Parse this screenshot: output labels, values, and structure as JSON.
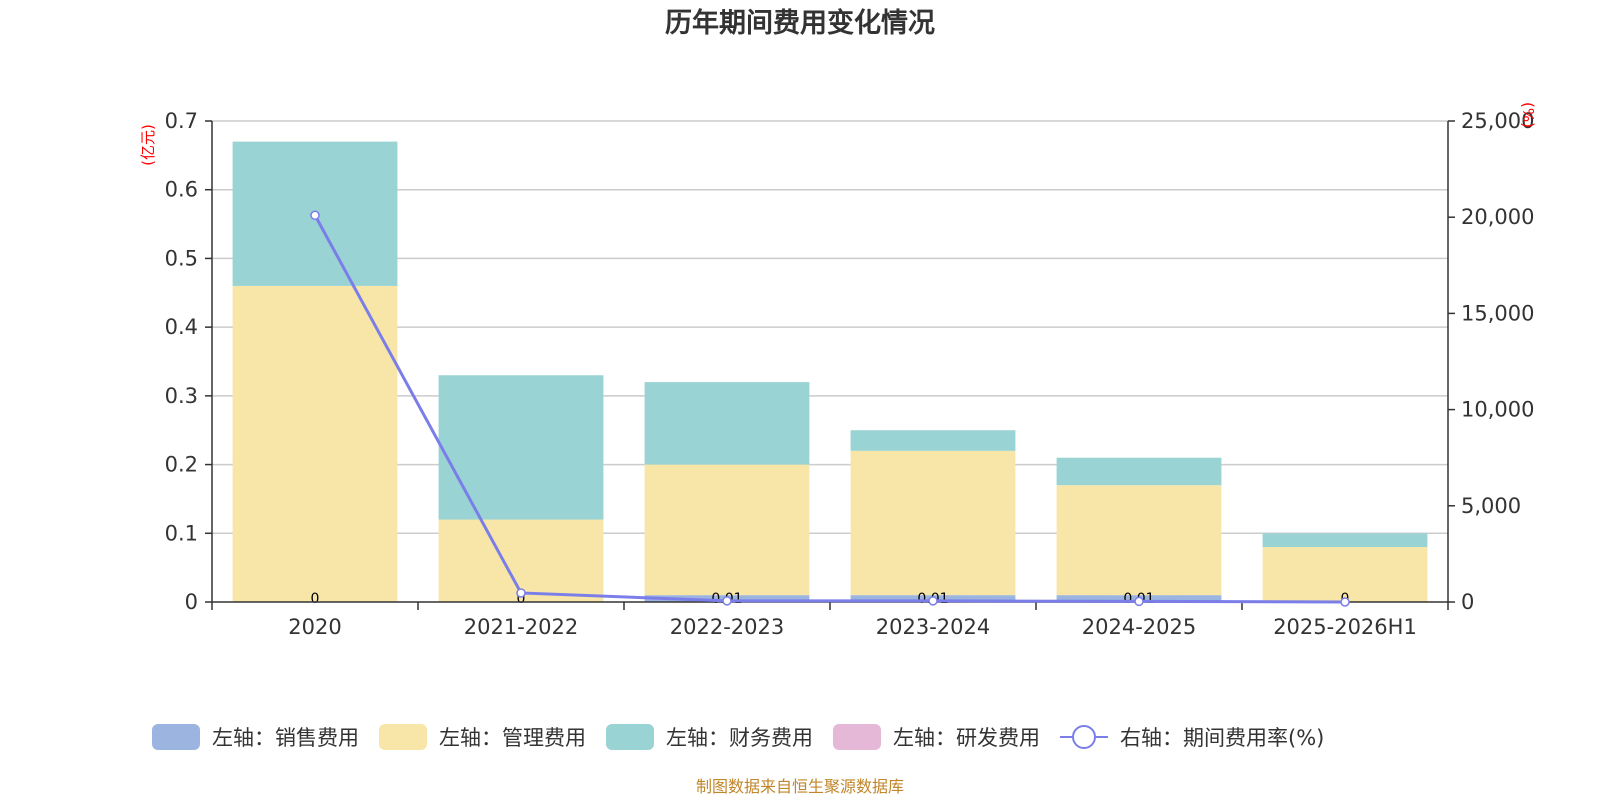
{
  "chart_data": {
    "type": "bar",
    "title": "历年期间费用变化情况",
    "left_unit": "(亿元)",
    "right_unit": "(%)",
    "categories": [
      "2020",
      "2021-2022",
      "2022-2023",
      "2023-2024",
      "2024-2025",
      "2025-2026H1"
    ],
    "left_ylim": [
      0,
      0.7
    ],
    "left_ticks": [
      "0",
      "0.1",
      "0.2",
      "0.3",
      "0.4",
      "0.5",
      "0.6",
      "0.7"
    ],
    "right_ylim": [
      0,
      25000
    ],
    "right_ticks": [
      "0",
      "5,000",
      "10,000",
      "15,000",
      "20,000",
      "25,000"
    ],
    "grid": true,
    "stacked": true,
    "legend_position": "bottom",
    "series": [
      {
        "name": "左轴：销售费用",
        "kind": "bar",
        "axis": "left",
        "color": "#9bb5e0",
        "values": [
          0,
          0,
          0.01,
          0.01,
          0.01,
          0
        ]
      },
      {
        "name": "左轴：管理费用",
        "kind": "bar",
        "axis": "left",
        "color": "#f7e6a8",
        "values": [
          0.46,
          0.12,
          0.19,
          0.21,
          0.16,
          0.08
        ]
      },
      {
        "name": "左轴：财务费用",
        "kind": "bar",
        "axis": "left",
        "color": "#99d3d4",
        "values": [
          0.21,
          0.21,
          0.12,
          0.03,
          0.04,
          0.02
        ]
      },
      {
        "name": "左轴：研发费用",
        "kind": "bar",
        "axis": "left",
        "color": "#e6b8d8",
        "values": [
          0,
          0,
          0,
          0,
          0,
          0
        ]
      },
      {
        "name": "右轴：期间费用率(%)",
        "kind": "line",
        "axis": "right",
        "color": "#7b7ee8",
        "values": [
          20100,
          470,
          60,
          60,
          30,
          0
        ]
      }
    ],
    "bar_labels": [
      "0",
      "0",
      "0.01",
      "0.01",
      "0.01",
      "0"
    ]
  },
  "source_text": "制图数据来自恒生聚源数据库"
}
